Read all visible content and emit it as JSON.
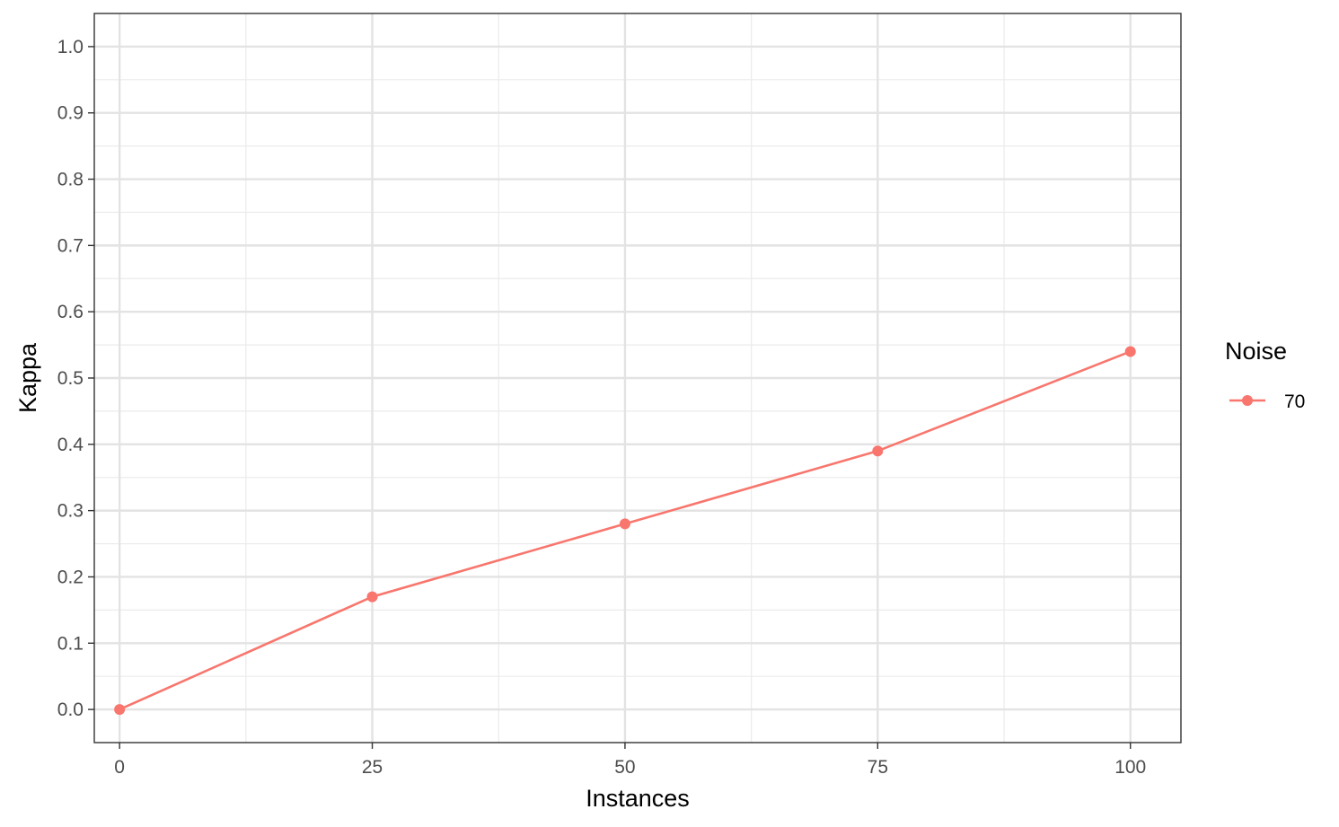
{
  "chart_data": {
    "type": "line",
    "x": [
      0,
      25,
      50,
      75,
      100
    ],
    "series": [
      {
        "name": "70",
        "values": [
          0.0,
          0.17,
          0.28,
          0.39,
          0.54
        ],
        "color": "#F8766D"
      }
    ],
    "xlabel": "Instances",
    "ylabel": "Kappa",
    "xlim": [
      -2.5,
      105
    ],
    "ylim": [
      -0.05,
      1.05
    ],
    "x_ticks": [
      0,
      25,
      50,
      75,
      100
    ],
    "x_tick_labels": [
      "0",
      "25",
      "50",
      "75",
      "100"
    ],
    "y_ticks": [
      0.0,
      0.1,
      0.2,
      0.3,
      0.4,
      0.5,
      0.6,
      0.7,
      0.8,
      0.9,
      1.0
    ],
    "y_tick_labels": [
      "0.0",
      "0.1",
      "0.2",
      "0.3",
      "0.4",
      "0.5",
      "0.6",
      "0.7",
      "0.8",
      "0.9",
      "1.0"
    ],
    "legend_title": "Noise",
    "legend_position": "right",
    "grid": true
  }
}
